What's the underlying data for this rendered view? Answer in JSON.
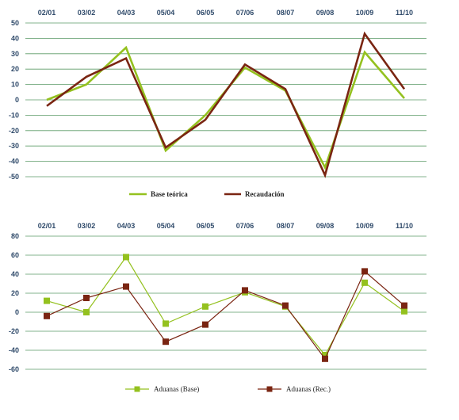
{
  "colors": {
    "base": "#94c11f",
    "recaudacion": "#7a2512",
    "grid": "#5a9a66",
    "tick_text": "#2f4a6a"
  },
  "chart_data": [
    {
      "type": "line",
      "categories": [
        "02/01",
        "03/02",
        "04/03",
        "05/04",
        "06/05",
        "07/06",
        "08/07",
        "09/08",
        "10/09",
        "11/10"
      ],
      "ylim": [
        -50,
        50
      ],
      "yticks": [
        50,
        40,
        30,
        20,
        10,
        0,
        -10,
        -20,
        -30,
        -40,
        -50
      ],
      "grid": true,
      "legend_position": "bottom",
      "series": [
        {
          "name": "Base teórica",
          "color": "#94c11f",
          "values": [
            0,
            10,
            34,
            -33,
            -10,
            21,
            6,
            -44,
            31,
            1
          ]
        },
        {
          "name": "Recaudación",
          "color": "#7a2512",
          "values": [
            -4,
            15,
            27,
            -31,
            -13,
            23,
            7,
            -49,
            43,
            7
          ]
        }
      ]
    },
    {
      "type": "line",
      "markers": "square",
      "categories": [
        "02/01",
        "03/02",
        "04/03",
        "05/04",
        "06/05",
        "07/06",
        "08/07",
        "09/08",
        "10/09",
        "11/10"
      ],
      "ylim": [
        -60,
        80
      ],
      "yticks": [
        80,
        60,
        40,
        20,
        0,
        -20,
        -40,
        -60
      ],
      "grid": true,
      "legend_position": "bottom",
      "series": [
        {
          "name": "Aduanas (Base)",
          "color": "#94c11f",
          "values": [
            12,
            0,
            58,
            -12,
            6,
            21,
            6,
            -45,
            31,
            1
          ]
        },
        {
          "name": "Aduanas (Rec.)",
          "color": "#7a2512",
          "values": [
            -4,
            15,
            27,
            -31,
            -13,
            23,
            7,
            -49,
            43,
            7
          ]
        }
      ]
    }
  ]
}
